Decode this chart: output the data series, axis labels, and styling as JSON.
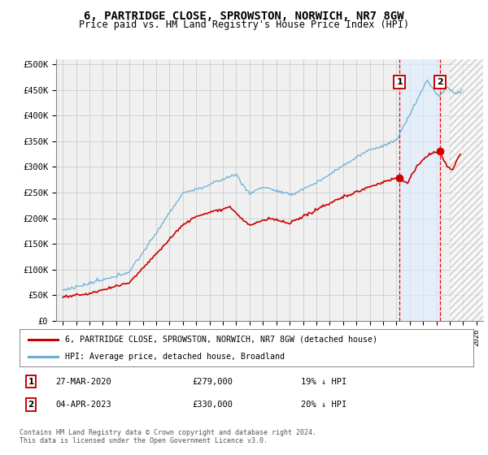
{
  "title": "6, PARTRIDGE CLOSE, SPROWSTON, NORWICH, NR7 8GW",
  "subtitle": "Price paid vs. HM Land Registry's House Price Index (HPI)",
  "ylabel_ticks": [
    "£0",
    "£50K",
    "£100K",
    "£150K",
    "£200K",
    "£250K",
    "£300K",
    "£350K",
    "£400K",
    "£450K",
    "£500K"
  ],
  "ytick_values": [
    0,
    50000,
    100000,
    150000,
    200000,
    250000,
    300000,
    350000,
    400000,
    450000,
    500000
  ],
  "ylim": [
    0,
    510000
  ],
  "xlim_start": 1994.5,
  "xlim_end": 2026.5,
  "hpi_color": "#6baed6",
  "price_color": "#cc0000",
  "grid_color": "#cccccc",
  "bg_color": "#f0f0f0",
  "legend1_label": "6, PARTRIDGE CLOSE, SPROWSTON, NORWICH, NR7 8GW (detached house)",
  "legend2_label": "HPI: Average price, detached house, Broadland",
  "sale1_date": "27-MAR-2020",
  "sale1_price": "£279,000",
  "sale1_info": "19% ↓ HPI",
  "sale1_year": 2020.23,
  "sale1_value": 279000,
  "sale2_date": "04-APR-2023",
  "sale2_price": "£330,000",
  "sale2_info": "20% ↓ HPI",
  "sale2_year": 2023.26,
  "sale2_value": 330000,
  "footer": "Contains HM Land Registry data © Crown copyright and database right 2024.\nThis data is licensed under the Open Government Licence v3.0.",
  "hatch_start": 2024.0,
  "hatch_end": 2027.0
}
